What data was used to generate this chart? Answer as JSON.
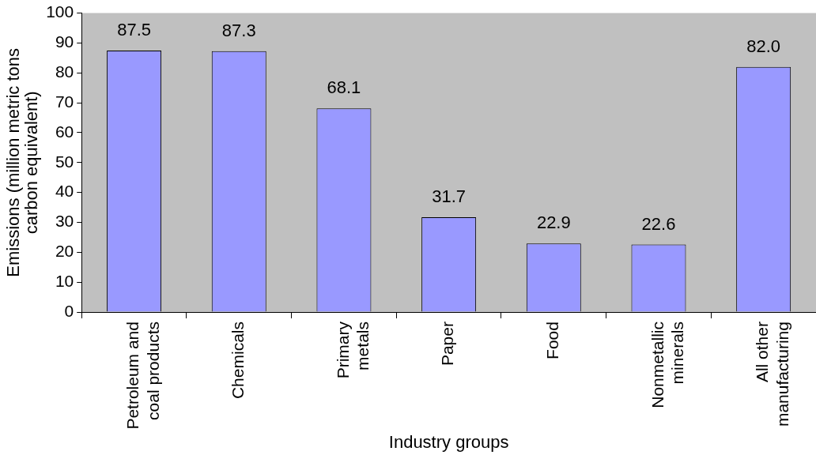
{
  "chart_data": {
    "type": "bar",
    "xlabel": "Industry groups",
    "ylabel": "Emissions (million metric tons\ncarbon equivalent)",
    "categories": [
      "Petroleum and\ncoal products",
      "Chemicals",
      "Primary\nmetals",
      "Paper",
      "Food",
      "Nonmetallic\nminerals",
      "All other\nmanufacturing"
    ],
    "values": [
      87.5,
      87.3,
      68.1,
      31.7,
      22.9,
      22.6,
      82.0
    ],
    "value_labels": [
      "87.5",
      "87.3",
      "68.1",
      "31.7",
      "22.9",
      "22.6",
      "82.0"
    ],
    "color": "#9999ff",
    "ylim": [
      0,
      100
    ],
    "yticks": [
      0,
      10,
      20,
      30,
      40,
      50,
      60,
      70,
      80,
      90,
      100
    ],
    "grid": false,
    "legend": false
  }
}
